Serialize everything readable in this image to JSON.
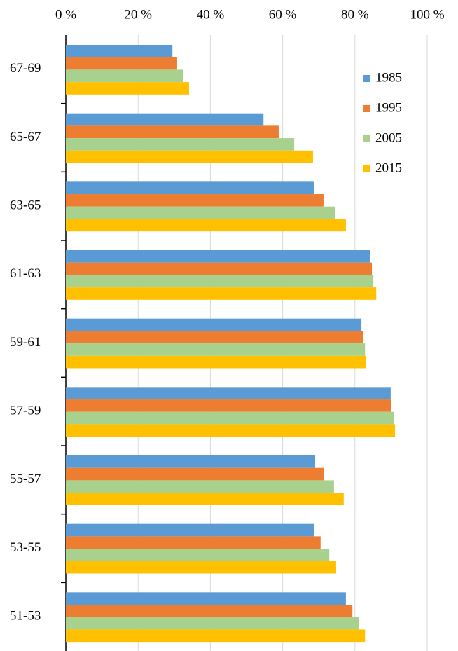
{
  "chart_data": {
    "type": "hbar",
    "categories": [
      "67-69",
      "65-67",
      "63-65",
      "61-63",
      "59-61",
      "57-59",
      "55-57",
      "53-55",
      "51-53"
    ],
    "series": [
      {
        "name": "1985",
        "color": "#5b9bd5",
        "values": [
          29.5,
          54.7,
          68.6,
          84.3,
          81.8,
          89.9,
          69.0,
          68.6,
          77.5
        ]
      },
      {
        "name": "1995",
        "color": "#ed7d31",
        "values": [
          30.8,
          58.9,
          71.3,
          84.7,
          82.2,
          90.1,
          71.5,
          70.5,
          79.3
        ]
      },
      {
        "name": "2005",
        "color": "#a9d18e",
        "values": [
          32.4,
          63.2,
          74.6,
          85.1,
          82.8,
          90.7,
          74.2,
          72.9,
          81.2
        ]
      },
      {
        "name": "2015",
        "color": "#ffc000",
        "values": [
          34.1,
          68.4,
          77.5,
          85.9,
          83.1,
          91.1,
          76.9,
          74.8,
          82.8
        ]
      }
    ],
    "xlim": [
      0,
      100
    ],
    "xticks": [
      {
        "value": 0,
        "label": "0 %"
      },
      {
        "value": 20,
        "label": "20 %"
      },
      {
        "value": 40,
        "label": "40 %"
      },
      {
        "value": 60,
        "label": "60 %"
      },
      {
        "value": 80,
        "label": "80 %"
      },
      {
        "value": 100,
        "label": "100 %"
      }
    ],
    "grid": true,
    "legend": "upper right"
  }
}
